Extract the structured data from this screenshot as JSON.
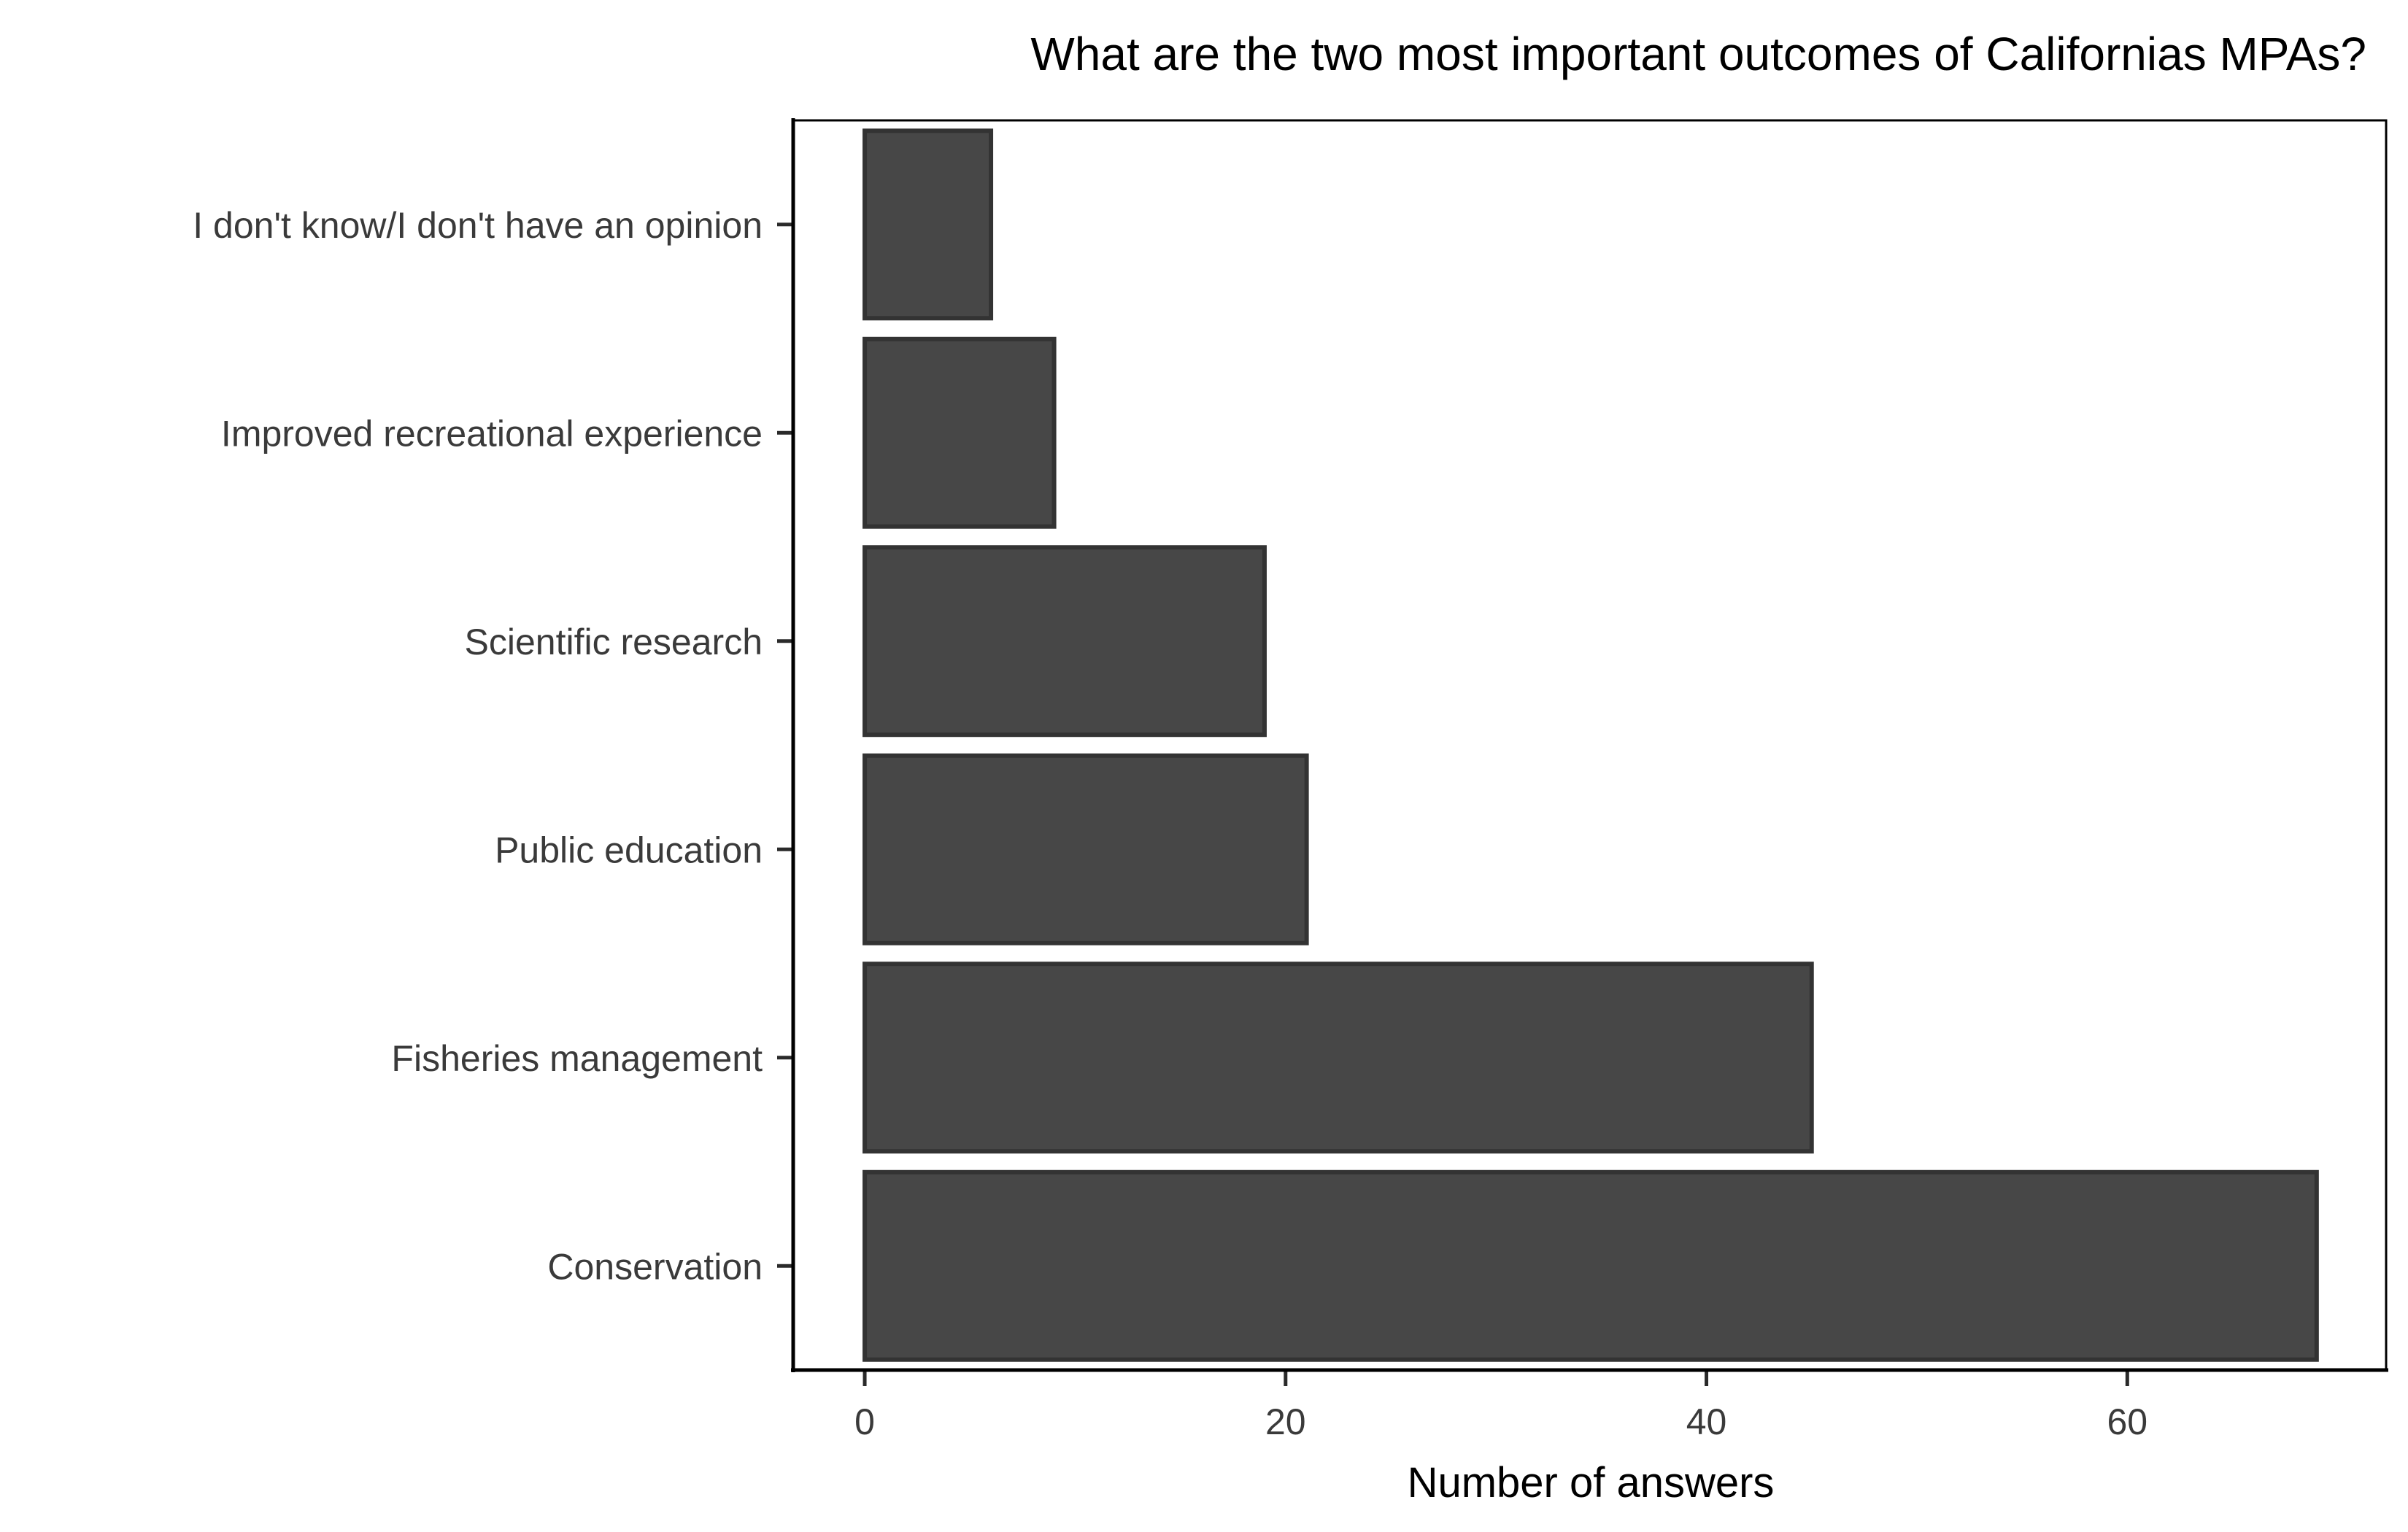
{
  "chart_data": {
    "type": "bar",
    "orientation": "horizontal",
    "title": "What are the two most important outcomes of Californias MPAs?",
    "xlabel": "Number of answers",
    "ylabel": "",
    "categories": [
      "I don't know/I don't have an opinion",
      "Improved recreational experience",
      "Scientific research",
      "Public education",
      "Fisheries management",
      "Conservation"
    ],
    "values": [
      6,
      9,
      19,
      21,
      45,
      69
    ],
    "xlim": [
      -3.4,
      72.3
    ],
    "xticks": [
      0,
      20,
      40,
      60
    ],
    "grid": false,
    "legend": "none",
    "bar_color": "#474747",
    "bar_outline": "#333333"
  }
}
